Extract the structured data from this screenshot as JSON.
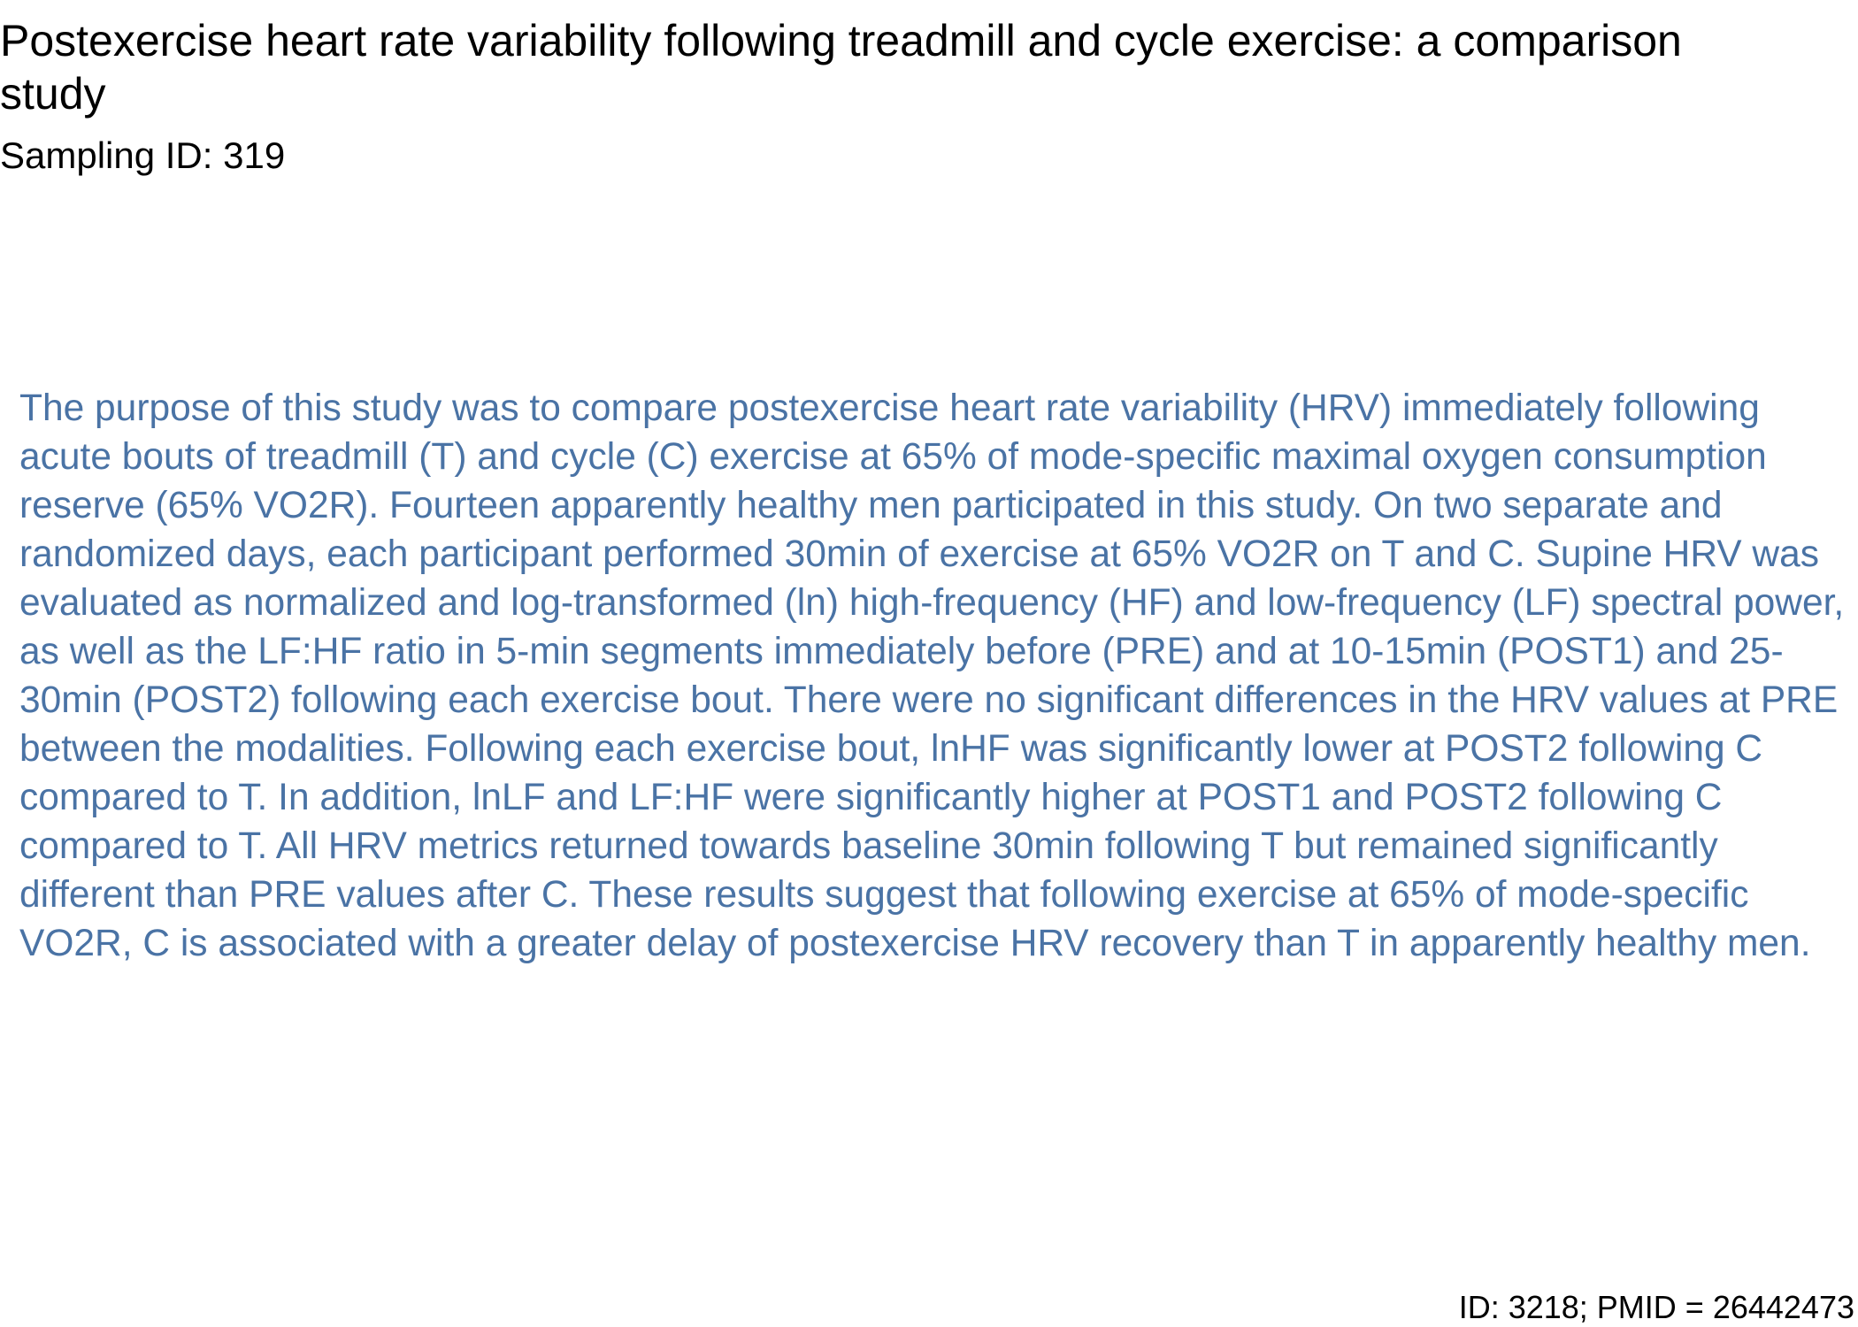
{
  "document": {
    "title": "Postexercise heart rate variability following treadmill and cycle exercise: a comparison study",
    "sampling_id": "Sampling ID: 319",
    "abstract": "The purpose of this study was to compare postexercise heart rate variability (HRV) immediately following acute bouts of treadmill (T) and cycle (C) exercise at 65% of mode-specific maximal oxygen consumption reserve (65% VO2R). Fourteen apparently healthy men participated in this study. On two separate and randomized days, each participant performed 30min of exercise at 65% VO2R on T and C. Supine HRV was evaluated as normalized and log-transformed (ln) high-frequency (HF) and low-frequency (LF) spectral power, as well as the LF:HF ratio in 5-min segments immediately before (PRE) and at 10-15min (POST1) and 25-30min (POST2) following each exercise bout. There were no significant differences in the HRV values at PRE between the modalities. Following each exercise bout, lnHF was significantly lower at POST2 following C compared to T. In addition, lnLF and LF:HF were significantly higher at POST1 and POST2 following C compared to T. All HRV metrics returned towards baseline 30min following T but remained significantly different than PRE values after C. These results suggest that following exercise at 65% of mode-specific VO2R, C is associated with a greater delay of postexercise HRV recovery than T in apparently healthy men.",
    "footer": "ID: 3218; PMID = 26442473"
  },
  "colors": {
    "title_text": "#000000",
    "abstract_text": "#4a73a5",
    "background": "#ffffff"
  }
}
